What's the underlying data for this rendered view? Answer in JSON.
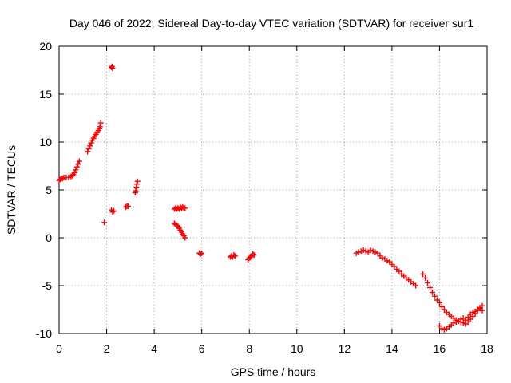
{
  "chart_data": {
    "type": "scatter",
    "title": "Day 046 of 2022, Sidereal Day-to-day VTEC variation (SDTVAR) for receiver sur1",
    "xlabel": "GPS time / hours",
    "ylabel": "SDTVAR / TECUs",
    "xlim": [
      0,
      18
    ],
    "ylim": [
      -10,
      20
    ],
    "xticks": [
      0,
      2,
      4,
      6,
      8,
      10,
      12,
      14,
      16,
      18
    ],
    "yticks": [
      -10,
      -5,
      0,
      5,
      10,
      15,
      20
    ],
    "xtick_labels": [
      "0",
      "2",
      "4",
      "6",
      "8",
      "10",
      "12",
      "14",
      "16",
      "18"
    ],
    "ytick_labels": [
      "-10",
      "-5",
      "0",
      "5",
      "10",
      "15",
      "20"
    ],
    "grid": true,
    "marker": "plus",
    "marker_color": "#ff0000",
    "series": [
      {
        "name": "sdtvar",
        "segments": [
          [
            [
              0.0,
              6.0
            ],
            [
              0.05,
              6.1
            ],
            [
              0.1,
              6.2
            ],
            [
              0.15,
              6.2
            ],
            [
              0.2,
              6.3
            ],
            [
              0.3,
              6.3
            ],
            [
              0.4,
              6.3
            ],
            [
              0.5,
              6.4
            ],
            [
              0.55,
              6.5
            ],
            [
              0.6,
              6.6
            ],
            [
              0.65,
              6.8
            ],
            [
              0.7,
              7.1
            ],
            [
              0.75,
              7.4
            ],
            [
              0.8,
              7.7
            ],
            [
              0.85,
              8.0
            ]
          ],
          [
            [
              1.2,
              9.0
            ],
            [
              1.25,
              9.3
            ],
            [
              1.3,
              9.6
            ],
            [
              1.35,
              9.9
            ],
            [
              1.4,
              10.2
            ],
            [
              1.45,
              10.4
            ],
            [
              1.5,
              10.6
            ],
            [
              1.55,
              10.8
            ],
            [
              1.6,
              11.0
            ],
            [
              1.65,
              11.2
            ],
            [
              1.7,
              11.4
            ],
            [
              1.72,
              11.6
            ],
            [
              1.75,
              12.0
            ]
          ],
          [
            [
              1.9,
              1.6
            ]
          ],
          [
            [
              2.2,
              17.8
            ],
            [
              2.23,
              17.9
            ],
            [
              2.25,
              17.7
            ]
          ],
          [
            [
              2.2,
              2.9
            ],
            [
              2.25,
              2.7
            ],
            [
              2.3,
              2.8
            ]
          ],
          [
            [
              2.8,
              3.2
            ],
            [
              2.85,
              3.3
            ],
            [
              2.9,
              3.3
            ]
          ],
          [
            [
              3.2,
              4.7
            ],
            [
              3.22,
              4.9
            ],
            [
              3.25,
              5.3
            ],
            [
              3.27,
              5.6
            ],
            [
              3.3,
              5.9
            ]
          ],
          [
            [
              4.85,
              3.0
            ],
            [
              4.9,
              3.1
            ],
            [
              4.95,
              3.0
            ],
            [
              5.0,
              3.1
            ],
            [
              5.05,
              3.0
            ],
            [
              5.1,
              3.2
            ],
            [
              5.15,
              3.1
            ],
            [
              5.2,
              3.2
            ],
            [
              5.25,
              3.1
            ],
            [
              5.3,
              3.1
            ]
          ],
          [
            [
              4.85,
              1.5
            ],
            [
              4.9,
              1.4
            ],
            [
              4.95,
              1.3
            ],
            [
              5.0,
              1.2
            ],
            [
              5.05,
              1.0
            ],
            [
              5.1,
              0.8
            ],
            [
              5.15,
              0.6
            ],
            [
              5.2,
              0.4
            ],
            [
              5.25,
              0.2
            ],
            [
              5.3,
              0.0
            ]
          ],
          [
            [
              5.9,
              -1.6
            ],
            [
              5.95,
              -1.7
            ],
            [
              6.0,
              -1.6
            ]
          ],
          [
            [
              7.2,
              -2.0
            ],
            [
              7.25,
              -1.9
            ],
            [
              7.3,
              -2.0
            ],
            [
              7.35,
              -1.8
            ],
            [
              7.4,
              -1.9
            ]
          ],
          [
            [
              7.95,
              -2.3
            ],
            [
              8.0,
              -2.1
            ],
            [
              8.05,
              -2.0
            ],
            [
              8.1,
              -1.9
            ],
            [
              8.15,
              -1.7
            ],
            [
              8.2,
              -1.8
            ]
          ],
          [
            [
              12.5,
              -1.6
            ],
            [
              12.6,
              -1.5
            ],
            [
              12.7,
              -1.4
            ],
            [
              12.8,
              -1.3
            ],
            [
              12.9,
              -1.4
            ],
            [
              13.0,
              -1.5
            ],
            [
              13.1,
              -1.3
            ],
            [
              13.2,
              -1.4
            ],
            [
              13.3,
              -1.5
            ],
            [
              13.4,
              -1.6
            ],
            [
              13.5,
              -1.9
            ],
            [
              13.6,
              -2.1
            ],
            [
              13.7,
              -2.2
            ],
            [
              13.8,
              -2.4
            ],
            [
              13.9,
              -2.5
            ],
            [
              14.0,
              -2.8
            ],
            [
              14.1,
              -3.0
            ],
            [
              14.2,
              -3.3
            ],
            [
              14.3,
              -3.5
            ],
            [
              14.4,
              -3.8
            ],
            [
              14.5,
              -4.0
            ],
            [
              14.6,
              -4.2
            ],
            [
              14.7,
              -4.4
            ],
            [
              14.8,
              -4.6
            ],
            [
              14.9,
              -4.8
            ],
            [
              15.0,
              -5.0
            ]
          ],
          [
            [
              15.3,
              -3.8
            ],
            [
              15.4,
              -4.2
            ],
            [
              15.5,
              -4.7
            ],
            [
              15.6,
              -5.2
            ],
            [
              15.7,
              -5.7
            ],
            [
              15.8,
              -6.1
            ],
            [
              15.9,
              -6.5
            ],
            [
              16.0,
              -6.8
            ],
            [
              16.1,
              -7.2
            ],
            [
              16.2,
              -7.5
            ],
            [
              16.3,
              -7.8
            ],
            [
              16.4,
              -8.0
            ],
            [
              16.5,
              -8.2
            ],
            [
              16.6,
              -8.4
            ],
            [
              16.7,
              -8.6
            ],
            [
              16.8,
              -8.7
            ],
            [
              16.9,
              -8.8
            ],
            [
              17.0,
              -8.9
            ],
            [
              17.1,
              -9.0
            ],
            [
              17.2,
              -8.8
            ],
            [
              17.3,
              -8.5
            ],
            [
              17.4,
              -8.2
            ],
            [
              17.5,
              -7.9
            ],
            [
              17.6,
              -7.6
            ],
            [
              17.7,
              -7.3
            ],
            [
              17.8,
              -7.1
            ]
          ],
          [
            [
              16.0,
              -9.2
            ],
            [
              16.1,
              -9.5
            ],
            [
              16.2,
              -9.6
            ],
            [
              16.3,
              -9.5
            ],
            [
              16.4,
              -9.3
            ],
            [
              16.5,
              -9.1
            ],
            [
              16.6,
              -8.9
            ],
            [
              16.7,
              -8.8
            ],
            [
              16.8,
              -8.7
            ],
            [
              16.9,
              -8.5
            ],
            [
              17.0,
              -8.4
            ],
            [
              17.1,
              -8.6
            ],
            [
              17.2,
              -8.3
            ],
            [
              17.3,
              -8.0
            ],
            [
              17.4,
              -7.8
            ],
            [
              17.5,
              -7.7
            ],
            [
              17.6,
              -7.5
            ],
            [
              17.7,
              -7.4
            ],
            [
              17.8,
              -7.6
            ]
          ]
        ]
      }
    ]
  }
}
